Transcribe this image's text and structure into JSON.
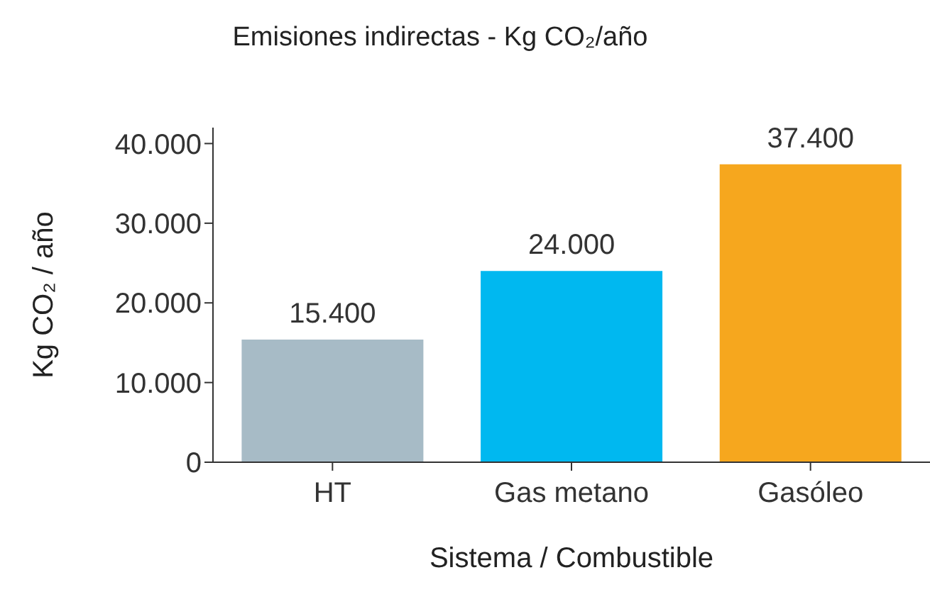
{
  "chart_data": {
    "type": "bar",
    "title": "Emisiones indirectas - Kg CO₂/año",
    "xlabel": "Sistema / Combustible",
    "ylabel": "Kg CO₂ / año",
    "categories": [
      "HT",
      "Gas metano",
      "Gasóleo"
    ],
    "values": [
      15400,
      24000,
      37400
    ],
    "colors": [
      "#a7bbc6",
      "#00b8f0",
      "#f6a71e"
    ],
    "value_labels": [
      "15.400",
      "24.000",
      "37.400"
    ],
    "ylim": [
      0,
      42000
    ],
    "yticks": [
      0,
      {
        "value": 10000,
        "label": "10.000"
      },
      {
        "value": 20000,
        "label": "20.000"
      },
      {
        "value": 30000,
        "label": "30.000"
      },
      {
        "value": 40000,
        "label": "40.000"
      }
    ],
    "grid": false,
    "legend": false
  }
}
